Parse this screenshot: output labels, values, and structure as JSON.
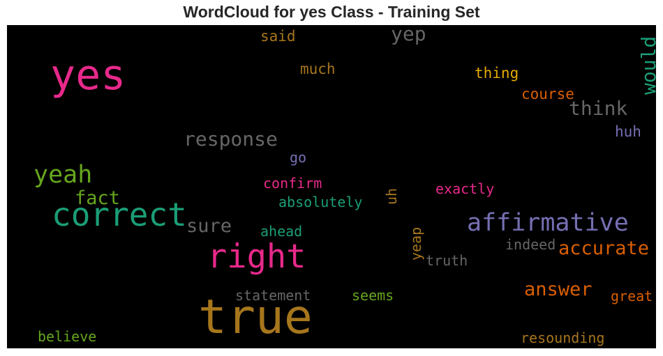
{
  "title": "WordCloud for yes Class - Training Set",
  "palette": {
    "pink": "#e7298a",
    "gold": "#b07c25",
    "green": "#1b9e77",
    "orange": "#d95f02",
    "purple": "#7570b3",
    "lime": "#66a61e",
    "gray": "#666666",
    "yellow": "#e6ab02"
  },
  "words": [
    {
      "text": "yes",
      "color": "#e7298a"
    },
    {
      "text": "true",
      "color": "#a6761d"
    },
    {
      "text": "right",
      "color": "#e7298a"
    },
    {
      "text": "correct",
      "color": "#1b9e77"
    },
    {
      "text": "affirmative",
      "color": "#7570b3"
    },
    {
      "text": "yeah",
      "color": "#66a61e"
    },
    {
      "text": "response",
      "color": "#666666"
    },
    {
      "text": "yep",
      "color": "#666666"
    },
    {
      "text": "think",
      "color": "#666666"
    },
    {
      "text": "would",
      "color": "#1b9e77"
    },
    {
      "text": "accurate",
      "color": "#d95f02"
    },
    {
      "text": "answer",
      "color": "#d95f02"
    },
    {
      "text": "fact",
      "color": "#66a61e"
    },
    {
      "text": "sure",
      "color": "#666666"
    },
    {
      "text": "said",
      "color": "#a6761d"
    },
    {
      "text": "much",
      "color": "#a6761d"
    },
    {
      "text": "thing",
      "color": "#e6ab02"
    },
    {
      "text": "course",
      "color": "#d95f02"
    },
    {
      "text": "huh",
      "color": "#7570b3"
    },
    {
      "text": "go",
      "color": "#7570b3"
    },
    {
      "text": "confirm",
      "color": "#e7298a"
    },
    {
      "text": "absolutely",
      "color": "#1b9e77"
    },
    {
      "text": "ahead",
      "color": "#1b9e77"
    },
    {
      "text": "uh",
      "color": "#a6761d"
    },
    {
      "text": "exactly",
      "color": "#e7298a"
    },
    {
      "text": "yeap",
      "color": "#a6761d"
    },
    {
      "text": "indeed",
      "color": "#666666"
    },
    {
      "text": "truth",
      "color": "#666666"
    },
    {
      "text": "statement",
      "color": "#666666"
    },
    {
      "text": "seems",
      "color": "#66a61e"
    },
    {
      "text": "great",
      "color": "#d95f02"
    },
    {
      "text": "believe",
      "color": "#66a61e"
    },
    {
      "text": "resounding",
      "color": "#a6761d"
    }
  ]
}
